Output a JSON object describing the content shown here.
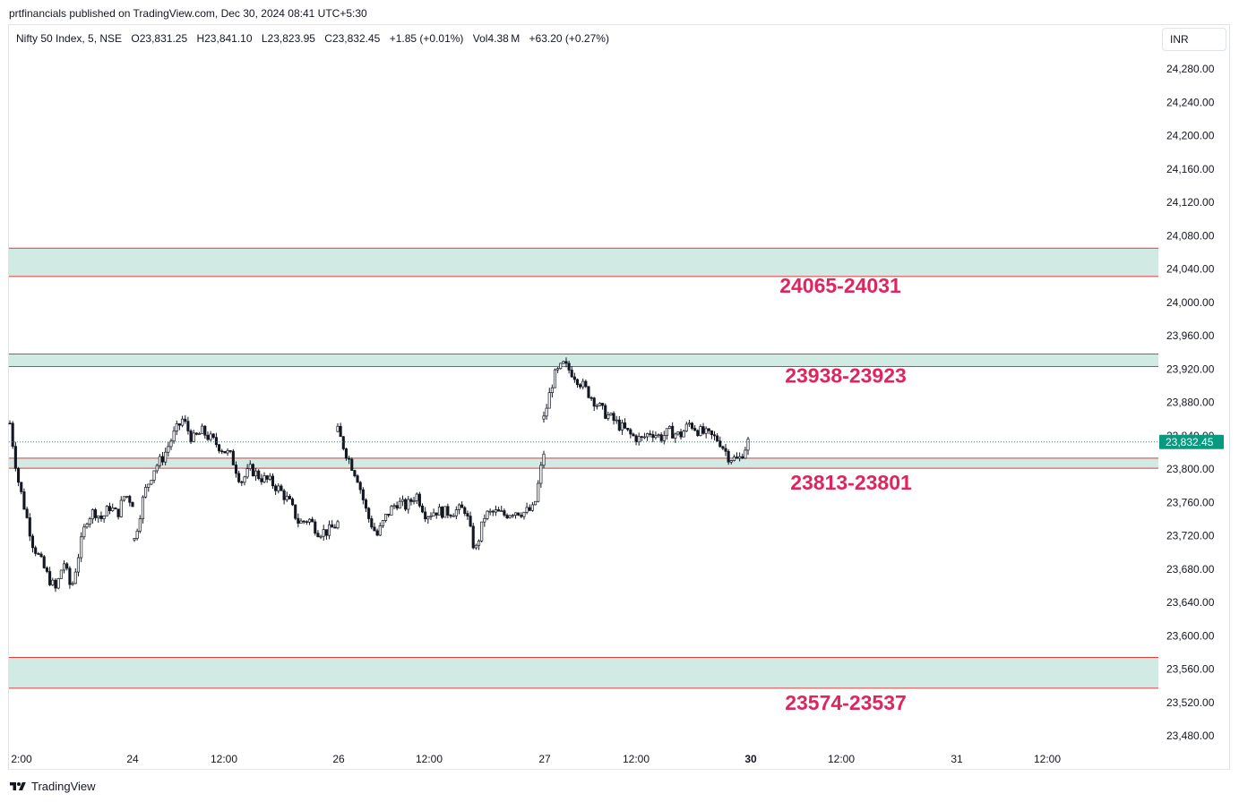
{
  "publisher": "prtfinancials published on TradingView.com, Dec 30, 2024 08:41 UTC+5:30",
  "legend": {
    "symbol": "Nifty 50 Index, 5, NSE",
    "open": "O23,831.25",
    "high": "H23,841.10",
    "low": "L23,823.95",
    "close": "C23,832.45",
    "change": "+1.85 (+0.01%)",
    "volume": "Vol4.38 M",
    "volume_change": "+63.20 (+0.27%)"
  },
  "currency": "INR",
  "footer": {
    "brand": "TradingView"
  },
  "colors": {
    "zone_fill": "#d1ebe4",
    "zone_border": "#e03a3a",
    "zone_label": "#e0245e",
    "up_candle": "#ffffff",
    "down_candle": "#131722",
    "price_tag": "#089981"
  },
  "chart_data": {
    "type": "candlestick",
    "symbol": "Nifty 50 Index, 5, NSE",
    "timeframe": "5",
    "currency": "INR",
    "ylim": [
      23460,
      24300
    ],
    "y_ticks": [
      24280,
      24240,
      24200,
      24160,
      24120,
      24080,
      24040,
      24000,
      23960,
      23920,
      23880,
      23840,
      23800,
      23760,
      23720,
      23680,
      23640,
      23600,
      23560,
      23520,
      23480
    ],
    "y_tick_labels": [
      "24,280.00",
      "24,240.00",
      "24,200.00",
      "24,160.00",
      "24,120.00",
      "24,080.00",
      "24,040.00",
      "24,000.00",
      "23,960.00",
      "23,920.00",
      "23,880.00",
      "23,840.00",
      "23,800.00",
      "23,760.00",
      "23,720.00",
      "23,680.00",
      "23,640.00",
      "23,600.00",
      "23,560.00",
      "23,520.00",
      "23,480.00"
    ],
    "x_tick_labels": [
      {
        "label": "2:00",
        "bold": false
      },
      {
        "label": "24",
        "bold": false
      },
      {
        "label": "12:00",
        "bold": false
      },
      {
        "label": "26",
        "bold": false
      },
      {
        "label": "12:00",
        "bold": false
      },
      {
        "label": "27",
        "bold": false
      },
      {
        "label": "12:00",
        "bold": false
      },
      {
        "label": "30",
        "bold": true
      },
      {
        "label": "12:00",
        "bold": false
      },
      {
        "label": "31",
        "bold": false
      },
      {
        "label": "12:00",
        "bold": false
      }
    ],
    "current_price": 23832.45,
    "current_price_label": "23,832.45",
    "zones": [
      {
        "top": 24065,
        "bottom": 24031,
        "label": "24065-24031"
      },
      {
        "top": 23938,
        "bottom": 23923,
        "label": "23938-23923"
      },
      {
        "top": 23813,
        "bottom": 23801,
        "label": "23813-23801"
      },
      {
        "top": 23574,
        "bottom": 23537,
        "label": "23574-23537"
      }
    ],
    "price_path": [
      {
        "t": "Dec 23 12:00",
        "price": 23855
      },
      {
        "t": "Dec 23",
        "price": 23790
      },
      {
        "t": "Dec 23",
        "price": 23750
      },
      {
        "t": "Dec 23",
        "price": 23710
      },
      {
        "t": "Dec 23",
        "price": 23690
      },
      {
        "t": "Dec 23",
        "price": 23670
      },
      {
        "t": "Dec 23",
        "price": 23655
      },
      {
        "t": "Dec 23",
        "price": 23690
      },
      {
        "t": "Dec 23",
        "price": 23655
      },
      {
        "t": "Dec 23",
        "price": 23700
      },
      {
        "t": "Dec 23",
        "price": 23740
      },
      {
        "t": "Dec 23",
        "price": 23750
      },
      {
        "t": "Dec 23",
        "price": 23740
      },
      {
        "t": "Dec 23",
        "price": 23755
      },
      {
        "t": "Dec 23",
        "price": 23745
      },
      {
        "t": "Dec 23",
        "price": 23770
      },
      {
        "t": "Dec 23",
        "price": 23760
      },
      {
        "t": "Dec 24",
        "price": 23715
      },
      {
        "t": "Dec 24",
        "price": 23770
      },
      {
        "t": "Dec 24",
        "price": 23800
      },
      {
        "t": "Dec 24",
        "price": 23815
      },
      {
        "t": "Dec 24",
        "price": 23840
      },
      {
        "t": "Dec 24",
        "price": 23860
      },
      {
        "t": "Dec 24",
        "price": 23835
      },
      {
        "t": "Dec 24",
        "price": 23845
      },
      {
        "t": "Dec 24",
        "price": 23835
      },
      {
        "t": "Dec 24",
        "price": 23825
      },
      {
        "t": "Dec 24",
        "price": 23815
      },
      {
        "t": "Dec 24",
        "price": 23785
      },
      {
        "t": "Dec 24",
        "price": 23800
      },
      {
        "t": "Dec 24",
        "price": 23790
      },
      {
        "t": "Dec 24",
        "price": 23785
      },
      {
        "t": "Dec 24",
        "price": 23775
      },
      {
        "t": "Dec 24",
        "price": 23760
      },
      {
        "t": "Dec 24",
        "price": 23735
      },
      {
        "t": "Dec 24",
        "price": 23740
      },
      {
        "t": "Dec 24",
        "price": 23725
      },
      {
        "t": "Dec 24",
        "price": 23725
      },
      {
        "t": "Dec 24",
        "price": 23735
      },
      {
        "t": "Dec 26",
        "price": 23845
      },
      {
        "t": "Dec 26",
        "price": 23815
      },
      {
        "t": "Dec 26",
        "price": 23790
      },
      {
        "t": "Dec 26",
        "price": 23745
      },
      {
        "t": "Dec 26",
        "price": 23720
      },
      {
        "t": "Dec 26",
        "price": 23745
      },
      {
        "t": "Dec 26",
        "price": 23760
      },
      {
        "t": "Dec 26",
        "price": 23755
      },
      {
        "t": "Dec 26",
        "price": 23770
      },
      {
        "t": "Dec 26",
        "price": 23745
      },
      {
        "t": "Dec 26",
        "price": 23750
      },
      {
        "t": "Dec 26",
        "price": 23748
      },
      {
        "t": "Dec 26",
        "price": 23750
      },
      {
        "t": "Dec 26",
        "price": 23752
      },
      {
        "t": "Dec 26",
        "price": 23700
      },
      {
        "t": "Dec 26",
        "price": 23745
      },
      {
        "t": "Dec 26",
        "price": 23748
      },
      {
        "t": "Dec 26",
        "price": 23745
      },
      {
        "t": "Dec 26",
        "price": 23750
      },
      {
        "t": "Dec 26",
        "price": 23748
      },
      {
        "t": "Dec 26",
        "price": 23752
      },
      {
        "t": "Dec 27",
        "price": 23820
      },
      {
        "t": "Dec 27",
        "price": 23860
      },
      {
        "t": "Dec 27",
        "price": 23910
      },
      {
        "t": "Dec 27",
        "price": 23925
      },
      {
        "t": "Dec 27",
        "price": 23915
      },
      {
        "t": "Dec 27",
        "price": 23900
      },
      {
        "t": "Dec 27",
        "price": 23885
      },
      {
        "t": "Dec 27",
        "price": 23870
      },
      {
        "t": "Dec 27",
        "price": 23860
      },
      {
        "t": "Dec 27",
        "price": 23850
      },
      {
        "t": "Dec 27",
        "price": 23840
      },
      {
        "t": "Dec 27",
        "price": 23835
      },
      {
        "t": "Dec 27",
        "price": 23845
      },
      {
        "t": "Dec 27",
        "price": 23838
      },
      {
        "t": "Dec 27",
        "price": 23845
      },
      {
        "t": "Dec 27",
        "price": 23840
      },
      {
        "t": "Dec 27",
        "price": 23855
      },
      {
        "t": "Dec 27",
        "price": 23845
      },
      {
        "t": "Dec 27",
        "price": 23840
      },
      {
        "t": "Dec 27",
        "price": 23835
      },
      {
        "t": "Dec 27",
        "price": 23815
      },
      {
        "t": "Dec 30",
        "price": 23810
      },
      {
        "t": "Dec 30",
        "price": 23832.45
      }
    ]
  }
}
